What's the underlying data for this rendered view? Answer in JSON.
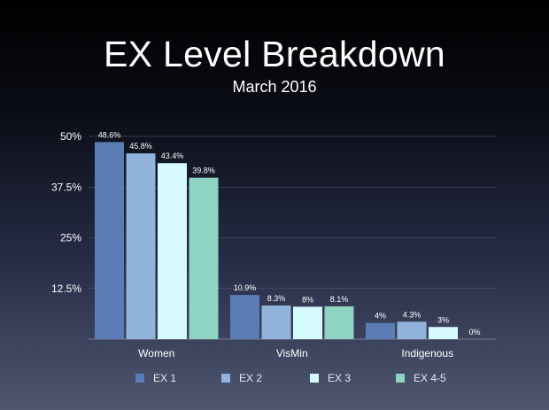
{
  "slide": {
    "title": "EX Level Breakdown",
    "subtitle": "March 2016"
  },
  "chart_data": {
    "type": "bar",
    "title": "EX Level Breakdown",
    "subtitle": "March 2016",
    "categories": [
      "Women",
      "VisMin",
      "Indigenous"
    ],
    "series": [
      {
        "name": "EX 1",
        "values": [
          48.6,
          10.9,
          4
        ],
        "labels": [
          "48.6%",
          "10.9%",
          "4%"
        ],
        "color": "#5a7db5"
      },
      {
        "name": "EX 2",
        "values": [
          45.8,
          8.3,
          4.3
        ],
        "labels": [
          "45.8%",
          "8.3%",
          "4.3%"
        ],
        "color": "#92b3db"
      },
      {
        "name": "EX 3",
        "values": [
          43.4,
          8,
          3
        ],
        "labels": [
          "43.4%",
          "8%",
          "3%"
        ],
        "color": "#d6fbfd"
      },
      {
        "name": "EX 4-5",
        "values": [
          39.8,
          8.1,
          0
        ],
        "labels": [
          "39.8%",
          "8.1%",
          "0%"
        ],
        "color": "#8fd4c2"
      }
    ],
    "y_ticks": [
      {
        "value": 12.5,
        "label": "12.5%"
      },
      {
        "value": 25,
        "label": "25%"
      },
      {
        "value": 37.5,
        "label": "37.5%"
      },
      {
        "value": 50,
        "label": "50%"
      }
    ],
    "ylim": [
      0,
      50
    ],
    "grid": true,
    "legend": "bottom"
  }
}
